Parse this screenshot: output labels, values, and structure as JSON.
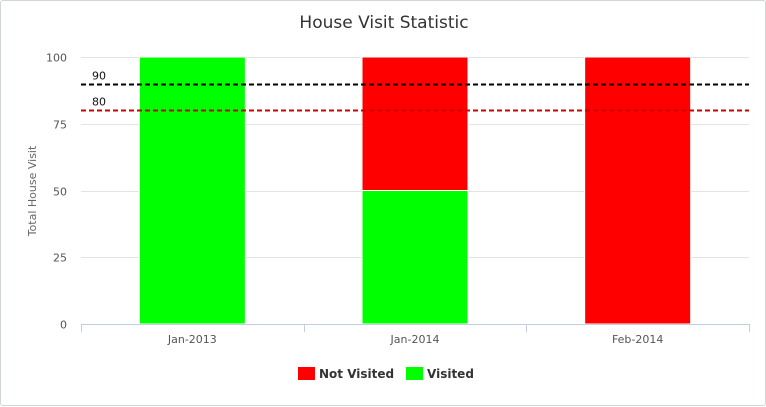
{
  "chart_data": {
    "type": "bar",
    "stacked": true,
    "title": "House Visit Statistic",
    "xlabel": "",
    "ylabel": "Total House Visit",
    "categories": [
      "Jan-2013",
      "Jan-2014",
      "Feb-2014"
    ],
    "ylim": [
      0,
      100
    ],
    "yticks": [
      0,
      25,
      50,
      75,
      100
    ],
    "series": [
      {
        "name": "Visited",
        "color": "#00ff00",
        "values": [
          100,
          50,
          0
        ]
      },
      {
        "name": "Not Visited",
        "color": "#ff0000",
        "values": [
          0,
          50,
          100
        ]
      }
    ],
    "legend_order": [
      "Not Visited",
      "Visited"
    ],
    "reference_lines": [
      {
        "value": 90,
        "label": "90",
        "color": "#000000",
        "style": "dashed"
      },
      {
        "value": 80,
        "label": "80",
        "color": "#cc0000",
        "style": "dashed"
      }
    ],
    "grid": true,
    "legend_position": "bottom-center"
  }
}
